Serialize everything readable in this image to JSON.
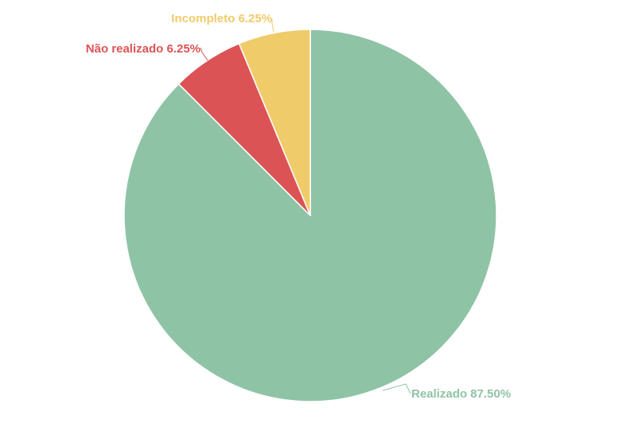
{
  "chart_data": {
    "type": "pie",
    "title": "",
    "start_angle_deg": 0,
    "direction": "clockwise",
    "slices": [
      {
        "name": "Realizado",
        "value": 87.5,
        "label": "Realizado 87.50%",
        "color": "#8fc3a6"
      },
      {
        "name": "Não realizado",
        "value": 6.25,
        "label": "Não realizado 6.25%",
        "color": "#dc5356"
      },
      {
        "name": "Incompleto",
        "value": 6.25,
        "label": "Incompleto 6.25%",
        "color": "#f0cb69"
      }
    ],
    "legend": "none",
    "slice_border_color": "#ffffff"
  }
}
